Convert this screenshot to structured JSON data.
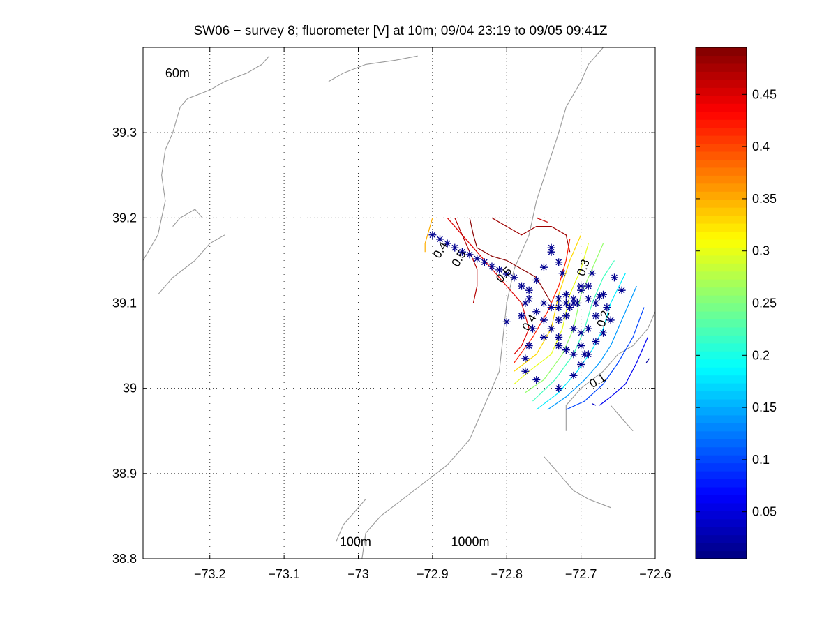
{
  "chart_data": {
    "type": "contour",
    "title": "SW06 − survey 8; fluorometer [V] at 10m; 09/04 23:19 to 09/05 09:41Z",
    "xlabel": "",
    "ylabel": "",
    "xlim": [
      -73.29,
      -72.6
    ],
    "ylim": [
      38.8,
      39.4
    ],
    "xticks": [
      -73.2,
      -73.1,
      -73.0,
      -72.9,
      -72.8,
      -72.7,
      -72.6
    ],
    "xtick_labels": [
      "−73.2",
      "−73.1",
      "−73",
      "−72.9",
      "−72.8",
      "−72.7",
      "−72.6"
    ],
    "yticks": [
      38.8,
      38.9,
      39.0,
      39.1,
      39.2,
      39.3
    ],
    "ytick_labels": [
      "38.8",
      "38.9",
      "39",
      "39.1",
      "39.2",
      "39.3"
    ],
    "grid": true,
    "colorbar": {
      "clim": [
        0.005,
        0.495
      ],
      "ticks": [
        0.05,
        0.1,
        0.15,
        0.2,
        0.25,
        0.3,
        0.35,
        0.4,
        0.45
      ],
      "tick_labels": [
        "0.05",
        "0.1",
        "0.15",
        "0.2",
        "0.25",
        "0.3",
        "0.35",
        "0.4",
        "0.45"
      ],
      "colormap": "jet"
    },
    "bathymetry_labels": [
      {
        "text": "60m",
        "x": -73.26,
        "y": 39.365
      },
      {
        "text": "100m",
        "x": -73.025,
        "y": 38.815
      },
      {
        "text": "1000m",
        "x": -72.875,
        "y": 38.815
      }
    ],
    "contour_labels": [
      {
        "text": "0.4",
        "x": -72.885,
        "y": 39.16,
        "angle": -60
      },
      {
        "text": "0.5",
        "x": -72.86,
        "y": 39.15,
        "angle": -60
      },
      {
        "text": "0.5",
        "x": -72.8,
        "y": 39.13,
        "angle": -45
      },
      {
        "text": "0.4",
        "x": -72.765,
        "y": 39.075,
        "angle": -60
      },
      {
        "text": "0.3",
        "x": -72.692,
        "y": 39.14,
        "angle": -70
      },
      {
        "text": "0.2",
        "x": -72.665,
        "y": 39.08,
        "angle": -70
      },
      {
        "text": "0.1",
        "x": -72.675,
        "y": 39.005,
        "angle": -30
      }
    ],
    "contour_lines": [
      {
        "level": 0.45,
        "points": [
          [
            -72.88,
            39.2
          ],
          [
            -72.86,
            39.18
          ],
          [
            -72.84,
            39.16
          ],
          [
            -72.82,
            39.14
          ],
          [
            -72.8,
            39.12
          ],
          [
            -72.78,
            39.1
          ],
          [
            -72.77,
            39.07
          ],
          [
            -72.78,
            39.05
          ],
          [
            -72.79,
            39.04
          ]
        ]
      },
      {
        "level": 0.47,
        "points": [
          [
            -72.87,
            39.2
          ],
          [
            -72.86,
            39.18
          ],
          [
            -72.85,
            39.16
          ],
          [
            -72.84,
            39.14
          ],
          [
            -72.84,
            39.12
          ],
          [
            -72.845,
            39.1
          ]
        ]
      },
      {
        "level": 0.49,
        "points": [
          [
            -72.85,
            39.2
          ],
          [
            -72.845,
            39.18
          ],
          [
            -72.84,
            39.165
          ],
          [
            -72.82,
            39.155
          ],
          [
            -72.8,
            39.15
          ],
          [
            -72.78,
            39.14
          ],
          [
            -72.76,
            39.13
          ],
          [
            -72.75,
            39.115
          ],
          [
            -72.74,
            39.1
          ]
        ]
      },
      {
        "level": 0.48,
        "points": [
          [
            -72.82,
            39.2
          ],
          [
            -72.8,
            39.19
          ],
          [
            -72.78,
            39.18
          ],
          [
            -72.76,
            39.19
          ],
          [
            -72.74,
            39.19
          ],
          [
            -72.72,
            39.18
          ],
          [
            -72.715,
            39.16
          ]
        ]
      },
      {
        "level": 0.46,
        "points": [
          [
            -72.76,
            39.2
          ],
          [
            -72.745,
            39.195
          ]
        ]
      },
      {
        "level": 0.42,
        "points": [
          [
            -72.715,
            39.175
          ],
          [
            -72.72,
            39.15
          ],
          [
            -72.73,
            39.12
          ],
          [
            -72.745,
            39.09
          ],
          [
            -72.765,
            39.06
          ],
          [
            -72.79,
            39.03
          ]
        ]
      },
      {
        "level": 0.35,
        "points": [
          [
            -72.9,
            39.2
          ],
          [
            -72.91,
            39.17
          ],
          [
            -72.91,
            39.16
          ]
        ]
      },
      {
        "level": 0.33,
        "points": [
          [
            -72.7,
            39.18
          ],
          [
            -72.715,
            39.15
          ],
          [
            -72.73,
            39.11
          ],
          [
            -72.74,
            39.07
          ],
          [
            -72.76,
            39.04
          ],
          [
            -72.79,
            39.02
          ]
        ]
      },
      {
        "level": 0.3,
        "points": [
          [
            -72.69,
            39.17
          ],
          [
            -72.7,
            39.14
          ],
          [
            -72.715,
            39.11
          ],
          [
            -72.725,
            39.07
          ],
          [
            -72.74,
            39.04
          ],
          [
            -72.77,
            39.02
          ],
          [
            -72.79,
            39.005
          ]
        ]
      },
      {
        "level": 0.26,
        "points": [
          [
            -72.67,
            39.17
          ],
          [
            -72.685,
            39.14
          ],
          [
            -72.7,
            39.11
          ],
          [
            -72.71,
            39.07
          ],
          [
            -72.725,
            39.04
          ],
          [
            -72.75,
            39.01
          ],
          [
            -72.775,
            38.995
          ]
        ]
      },
      {
        "level": 0.22,
        "points": [
          [
            -72.655,
            39.15
          ],
          [
            -72.67,
            39.13
          ],
          [
            -72.685,
            39.1
          ],
          [
            -72.695,
            39.07
          ],
          [
            -72.71,
            39.04
          ],
          [
            -72.735,
            39.01
          ],
          [
            -72.765,
            38.985
          ]
        ]
      },
      {
        "level": 0.18,
        "points": [
          [
            -72.64,
            39.135
          ],
          [
            -72.66,
            39.1
          ],
          [
            -72.67,
            39.07
          ],
          [
            -72.685,
            39.045
          ],
          [
            -72.705,
            39.02
          ],
          [
            -72.73,
            38.995
          ],
          [
            -72.76,
            38.975
          ]
        ]
      },
      {
        "level": 0.14,
        "points": [
          [
            -72.625,
            39.12
          ],
          [
            -72.645,
            39.08
          ],
          [
            -72.66,
            39.05
          ],
          [
            -72.675,
            39.03
          ],
          [
            -72.695,
            39.01
          ],
          [
            -72.72,
            38.99
          ],
          [
            -72.745,
            38.975
          ]
        ]
      },
      {
        "level": 0.1,
        "points": [
          [
            -72.615,
            39.095
          ],
          [
            -72.63,
            39.06
          ],
          [
            -72.65,
            39.03
          ],
          [
            -72.67,
            39.005
          ],
          [
            -72.695,
            38.985
          ],
          [
            -72.72,
            38.975
          ]
        ]
      },
      {
        "level": 0.06,
        "points": [
          [
            -72.61,
            39.06
          ],
          [
            -72.625,
            39.03
          ],
          [
            -72.64,
            39.005
          ],
          [
            -72.66,
            38.99
          ],
          [
            -72.675,
            38.98
          ]
        ]
      },
      {
        "level": 0.04,
        "points": [
          [
            -72.685,
            38.982
          ],
          [
            -72.68,
            38.98
          ]
        ]
      },
      {
        "level": 0.02,
        "points": [
          [
            -72.608,
            39.035
          ],
          [
            -72.612,
            39.03
          ]
        ]
      }
    ],
    "bathymetry_lines": [
      {
        "name": "1000m",
        "points": [
          [
            -72.995,
            38.8
          ],
          [
            -72.99,
            38.83
          ],
          [
            -72.97,
            38.85
          ],
          [
            -72.94,
            38.87
          ],
          [
            -72.91,
            38.89
          ],
          [
            -72.88,
            38.91
          ],
          [
            -72.85,
            38.94
          ],
          [
            -72.83,
            38.98
          ],
          [
            -72.81,
            39.02
          ],
          [
            -72.805,
            39.06
          ],
          [
            -72.8,
            39.1
          ],
          [
            -72.79,
            39.14
          ],
          [
            -72.77,
            39.18
          ],
          [
            -72.76,
            39.22
          ],
          [
            -72.745,
            39.26
          ],
          [
            -72.73,
            39.3
          ],
          [
            -72.72,
            39.33
          ],
          [
            -72.7,
            39.36
          ],
          [
            -72.69,
            39.38
          ],
          [
            -72.67,
            39.4
          ]
        ]
      },
      {
        "name": "60m",
        "points": [
          [
            -73.29,
            39.15
          ],
          [
            -73.27,
            39.18
          ],
          [
            -73.26,
            39.22
          ],
          [
            -73.265,
            39.25
          ],
          [
            -73.26,
            39.28
          ],
          [
            -73.25,
            39.3
          ],
          [
            -73.24,
            39.33
          ],
          [
            -73.23,
            39.34
          ],
          [
            -73.2,
            39.35
          ],
          [
            -73.18,
            39.36
          ],
          [
            -73.15,
            39.37
          ],
          [
            -73.13,
            39.38
          ],
          [
            -73.12,
            39.39
          ]
        ]
      },
      {
        "name": "60m-b",
        "points": [
          [
            -73.27,
            39.11
          ],
          [
            -73.25,
            39.13
          ],
          [
            -73.22,
            39.15
          ],
          [
            -73.2,
            39.17
          ],
          [
            -73.18,
            39.18
          ]
        ]
      },
      {
        "name": "60m-c",
        "points": [
          [
            -73.25,
            39.19
          ],
          [
            -73.24,
            39.2
          ],
          [
            -73.22,
            39.21
          ],
          [
            -73.21,
            39.2
          ]
        ]
      },
      {
        "name": "60m-d",
        "points": [
          [
            -73.04,
            39.36
          ],
          [
            -73.02,
            39.37
          ],
          [
            -72.99,
            39.38
          ],
          [
            -72.95,
            39.385
          ],
          [
            -72.92,
            39.39
          ]
        ]
      },
      {
        "name": "100m",
        "points": [
          [
            -73.03,
            38.82
          ],
          [
            -73.02,
            38.84
          ],
          [
            -73.0,
            38.86
          ],
          [
            -72.99,
            38.87
          ]
        ]
      },
      {
        "name": "shelf-se",
        "points": [
          [
            -72.72,
            38.95
          ],
          [
            -72.72,
            38.98
          ],
          [
            -72.7,
            39.0
          ],
          [
            -72.67,
            39.02
          ],
          [
            -72.65,
            39.04
          ],
          [
            -72.63,
            39.05
          ],
          [
            -72.61,
            39.07
          ],
          [
            -72.6,
            39.09
          ]
        ]
      },
      {
        "name": "shelf-se-b",
        "points": [
          [
            -72.75,
            38.92
          ],
          [
            -72.73,
            38.9
          ],
          [
            -72.71,
            38.88
          ],
          [
            -72.69,
            38.87
          ],
          [
            -72.66,
            38.86
          ]
        ]
      },
      {
        "name": "shelf-se-c",
        "points": [
          [
            -72.66,
            38.98
          ],
          [
            -72.64,
            38.96
          ],
          [
            -72.63,
            38.95
          ]
        ]
      }
    ],
    "stations": [
      [
        -72.9,
        39.18
      ],
      [
        -72.89,
        39.175
      ],
      [
        -72.88,
        39.17
      ],
      [
        -72.87,
        39.165
      ],
      [
        -72.86,
        39.16
      ],
      [
        -72.85,
        39.157
      ],
      [
        -72.84,
        39.152
      ],
      [
        -72.83,
        39.148
      ],
      [
        -72.82,
        39.143
      ],
      [
        -72.81,
        39.139
      ],
      [
        -72.8,
        39.134
      ],
      [
        -72.79,
        39.13
      ],
      [
        -72.78,
        39.12
      ],
      [
        -72.77,
        39.115
      ],
      [
        -72.76,
        39.127
      ],
      [
        -72.75,
        39.142
      ],
      [
        -72.74,
        39.165
      ],
      [
        -72.74,
        39.16
      ],
      [
        -72.73,
        39.148
      ],
      [
        -72.725,
        39.135
      ],
      [
        -72.775,
        39.1
      ],
      [
        -72.77,
        39.105
      ],
      [
        -72.76,
        39.09
      ],
      [
        -72.75,
        39.1
      ],
      [
        -72.74,
        39.095
      ],
      [
        -72.73,
        39.105
      ],
      [
        -72.72,
        39.1
      ],
      [
        -72.715,
        39.095
      ],
      [
        -72.71,
        39.1
      ],
      [
        -72.705,
        39.1
      ],
      [
        -72.7,
        39.12
      ],
      [
        -72.7,
        39.115
      ],
      [
        -72.69,
        39.12
      ],
      [
        -72.685,
        39.135
      ],
      [
        -72.69,
        39.105
      ],
      [
        -72.68,
        39.1
      ],
      [
        -72.675,
        39.108
      ],
      [
        -72.67,
        39.11
      ],
      [
        -72.665,
        39.095
      ],
      [
        -72.66,
        39.08
      ],
      [
        -72.655,
        39.13
      ],
      [
        -72.645,
        39.115
      ],
      [
        -72.8,
        39.078
      ],
      [
        -72.78,
        39.085
      ],
      [
        -72.765,
        39.07
      ],
      [
        -72.75,
        39.08
      ],
      [
        -72.74,
        39.07
      ],
      [
        -72.73,
        39.08
      ],
      [
        -72.72,
        39.085
      ],
      [
        -72.71,
        39.07
      ],
      [
        -72.7,
        39.065
      ],
      [
        -72.69,
        39.07
      ],
      [
        -72.68,
        39.085
      ],
      [
        -72.67,
        39.065
      ],
      [
        -72.77,
        39.05
      ],
      [
        -72.75,
        39.06
      ],
      [
        -72.73,
        39.06
      ],
      [
        -72.73,
        39.05
      ],
      [
        -72.72,
        39.045
      ],
      [
        -72.71,
        39.04
      ],
      [
        -72.7,
        39.05
      ],
      [
        -72.69,
        39.04
      ],
      [
        -72.68,
        39.055
      ],
      [
        -72.775,
        39.035
      ],
      [
        -72.775,
        39.02
      ],
      [
        -72.76,
        39.01
      ],
      [
        -72.73,
        39.0
      ],
      [
        -72.71,
        39.015
      ],
      [
        -72.7,
        39.028
      ],
      [
        -72.695,
        39.04
      ],
      [
        -72.71,
        39.105
      ],
      [
        -72.72,
        39.11
      ],
      [
        -72.73,
        39.095
      ]
    ]
  }
}
